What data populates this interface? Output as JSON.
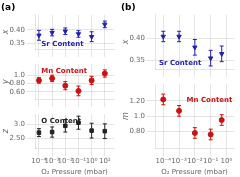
{
  "chart_data": [
    {
      "type": "scatter",
      "title": "(a)",
      "annotation": "Sr Content",
      "x": [
        0.0001,
        0.001,
        0.01,
        0.1,
        1,
        10
      ],
      "values": [
        0.38,
        0.39,
        0.395,
        0.385,
        0.375,
        0.42
      ],
      "yerr": [
        0.018,
        0.012,
        0.012,
        0.012,
        0.018,
        0.012
      ],
      "color": "#2222aa",
      "marker": "triangle-down",
      "ylabel": "x",
      "ylim": [
        0.33,
        0.455
      ],
      "yticks": [
        0.35,
        {
          "value": 0.4,
          "label": "0.40"
        }
      ],
      "xlim": [
        5e-05,
        50
      ],
      "xticks": [
        0.0001,
        0.001,
        0.01,
        0.1,
        1,
        10
      ],
      "log": "x",
      "grid": true,
      "tick_labels": "y"
    },
    {
      "type": "scatter",
      "annotation": "Mn Content",
      "x": [
        0.0001,
        0.001,
        0.01,
        0.1,
        1,
        10
      ],
      "values": [
        0.88,
        0.93,
        0.75,
        0.62,
        0.88,
        1.05
      ],
      "yerr": [
        0.07,
        0.08,
        0.1,
        0.12,
        0.1,
        0.09
      ],
      "color": "#cc1111",
      "marker": "circle",
      "ylabel": "y",
      "ylim": [
        0.42,
        1.28
      ],
      "yticks": [
        {
          "value": 0.6,
          "label": "0.60"
        },
        {
          "value": 0.8,
          "label": "0.80"
        },
        {
          "value": 1.0,
          "label": "1.0"
        }
      ],
      "xlim": [
        5e-05,
        50
      ],
      "xticks": [
        0.0001,
        0.001,
        0.01,
        0.1,
        1,
        10
      ],
      "log": "x",
      "grid": true,
      "tick_labels": "y"
    },
    {
      "type": "scatter",
      "annotation": "O Content",
      "x": [
        0.0001,
        0.001,
        0.01,
        0.1,
        1,
        10
      ],
      "values": [
        2.7,
        2.72,
        2.94,
        3.05,
        2.77,
        2.75
      ],
      "yerr": [
        0.14,
        0.18,
        0.22,
        0.23,
        0.26,
        0.26
      ],
      "color": "#222222",
      "marker": "square",
      "ylabel": "z",
      "xlabel": "O₂ Pressure (mbar)",
      "ylim": [
        2.15,
        3.35
      ],
      "yticks": [
        {
          "value": 2.5,
          "label": "2.50"
        },
        {
          "value": 3.0,
          "label": "3.0"
        }
      ],
      "xlim": [
        5e-05,
        50
      ],
      "xticks": [
        {
          "value": 0.0001,
          "label": "10⁻⁴"
        },
        {
          "value": 0.001,
          "label": "10⁻³"
        },
        {
          "value": 0.01,
          "label": "10⁻²"
        },
        {
          "value": 0.1,
          "label": "10⁻¹"
        },
        {
          "value": 1,
          "label": "10⁰"
        },
        {
          "value": 10,
          "label": "10¹"
        }
      ],
      "log": "x",
      "grid": true
    },
    {
      "type": "scatter",
      "title": "(b)",
      "annotation": "Sr Content",
      "x": [
        0.0001,
        0.001,
        0.01,
        0.1,
        0.5
      ],
      "values": [
        0.405,
        0.405,
        0.38,
        0.355,
        0.365
      ],
      "yerr": [
        0.012,
        0.012,
        0.018,
        0.018,
        0.018
      ],
      "color": "#2222aa",
      "marker": "triangle-down",
      "ylabel": "x",
      "ylim": [
        0.33,
        0.455
      ],
      "yticks": [
        0.35,
        {
          "value": 0.4,
          "label": "0.40"
        }
      ],
      "xlim": [
        3e-05,
        3
      ],
      "xticks": [
        0.0001,
        0.001,
        0.01,
        0.1,
        1
      ],
      "log": "x",
      "grid": true,
      "tick_labels": "y"
    },
    {
      "type": "scatter",
      "annotation": "Mn Content",
      "x": [
        0.0001,
        0.001,
        0.01,
        0.1,
        0.5
      ],
      "values": [
        1.22,
        1.07,
        0.78,
        0.76,
        0.95
      ],
      "yerr": [
        0.07,
        0.07,
        0.07,
        0.07,
        0.07
      ],
      "color": "#cc1111",
      "marker": "circle",
      "ylabel": "m",
      "xlabel": "O₂ Pressure (mbar)",
      "ylim": [
        0.58,
        1.42
      ],
      "yticks": [
        {
          "value": 0.8,
          "label": "0.80"
        },
        {
          "value": 1.0,
          "label": "1.0"
        },
        {
          "value": 1.2,
          "label": "1.20"
        }
      ],
      "xlim": [
        3e-05,
        3
      ],
      "xticks": [
        {
          "value": 0.0001,
          "label": "10⁻⁴"
        },
        {
          "value": 0.001,
          "label": "10⁻³"
        },
        {
          "value": 0.01,
          "label": "10⁻²"
        },
        {
          "value": 0.1,
          "label": "10⁻¹"
        },
        {
          "value": 1,
          "label": "10⁰"
        }
      ],
      "log": "x",
      "grid": true
    }
  ]
}
